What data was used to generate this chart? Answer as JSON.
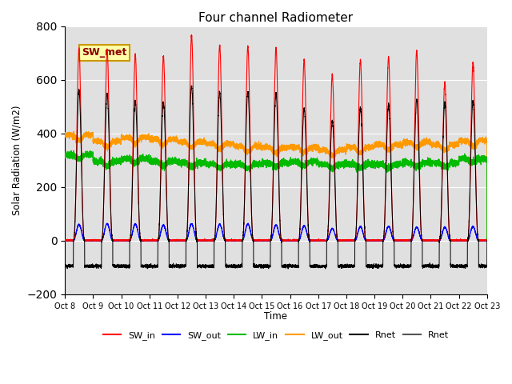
{
  "title": "Four channel Radiometer",
  "ylabel": "Solar Radiation (W/m2)",
  "xlabel": "Time",
  "ylim": [
    -200,
    800
  ],
  "xlim": [
    0,
    15
  ],
  "x_tick_labels": [
    "Oct 8",
    "Oct 9",
    "Oct 10",
    "Oct 11",
    "Oct 12",
    "Oct 13",
    "Oct 14",
    "Oct 15",
    "Oct 16",
    "Oct 17",
    "Oct 18",
    "Oct 19",
    "Oct 20",
    "Oct 21",
    "Oct 22",
    "Oct 23"
  ],
  "annotation_text": "SW_met",
  "annotation_fx": 0.04,
  "annotation_fy": 0.89,
  "colors": {
    "SW_in": "#ff0000",
    "SW_out": "#0000ff",
    "LW_in": "#00bb00",
    "LW_out": "#ff9900",
    "Rnet1": "#000000",
    "Rnet2": "#555555"
  },
  "bg_color": "#e0e0e0",
  "n_days": 15,
  "SW_in_peak": [
    715,
    715,
    695,
    688,
    765,
    728,
    725,
    720,
    675,
    620,
    675,
    685,
    710,
    590,
    665
  ],
  "SW_out_peak": [
    60,
    63,
    62,
    58,
    62,
    60,
    62,
    58,
    55,
    45,
    52,
    53,
    50,
    50,
    52
  ],
  "LW_in_base": [
    320,
    295,
    305,
    295,
    290,
    285,
    285,
    290,
    295,
    285,
    285,
    285,
    290,
    290,
    305
  ],
  "LW_out_base": [
    395,
    370,
    385,
    378,
    368,
    362,
    352,
    348,
    348,
    338,
    348,
    358,
    368,
    358,
    373
  ],
  "Rnet_peak": [
    560,
    545,
    520,
    515,
    575,
    555,
    555,
    550,
    490,
    445,
    495,
    505,
    525,
    515,
    520
  ],
  "Rnet_night": -95,
  "legend_entries": [
    "SW_in",
    "SW_out",
    "LW_in",
    "LW_out",
    "Rnet",
    "Rnet"
  ],
  "figsize": [
    6.4,
    4.8
  ],
  "dpi": 100
}
